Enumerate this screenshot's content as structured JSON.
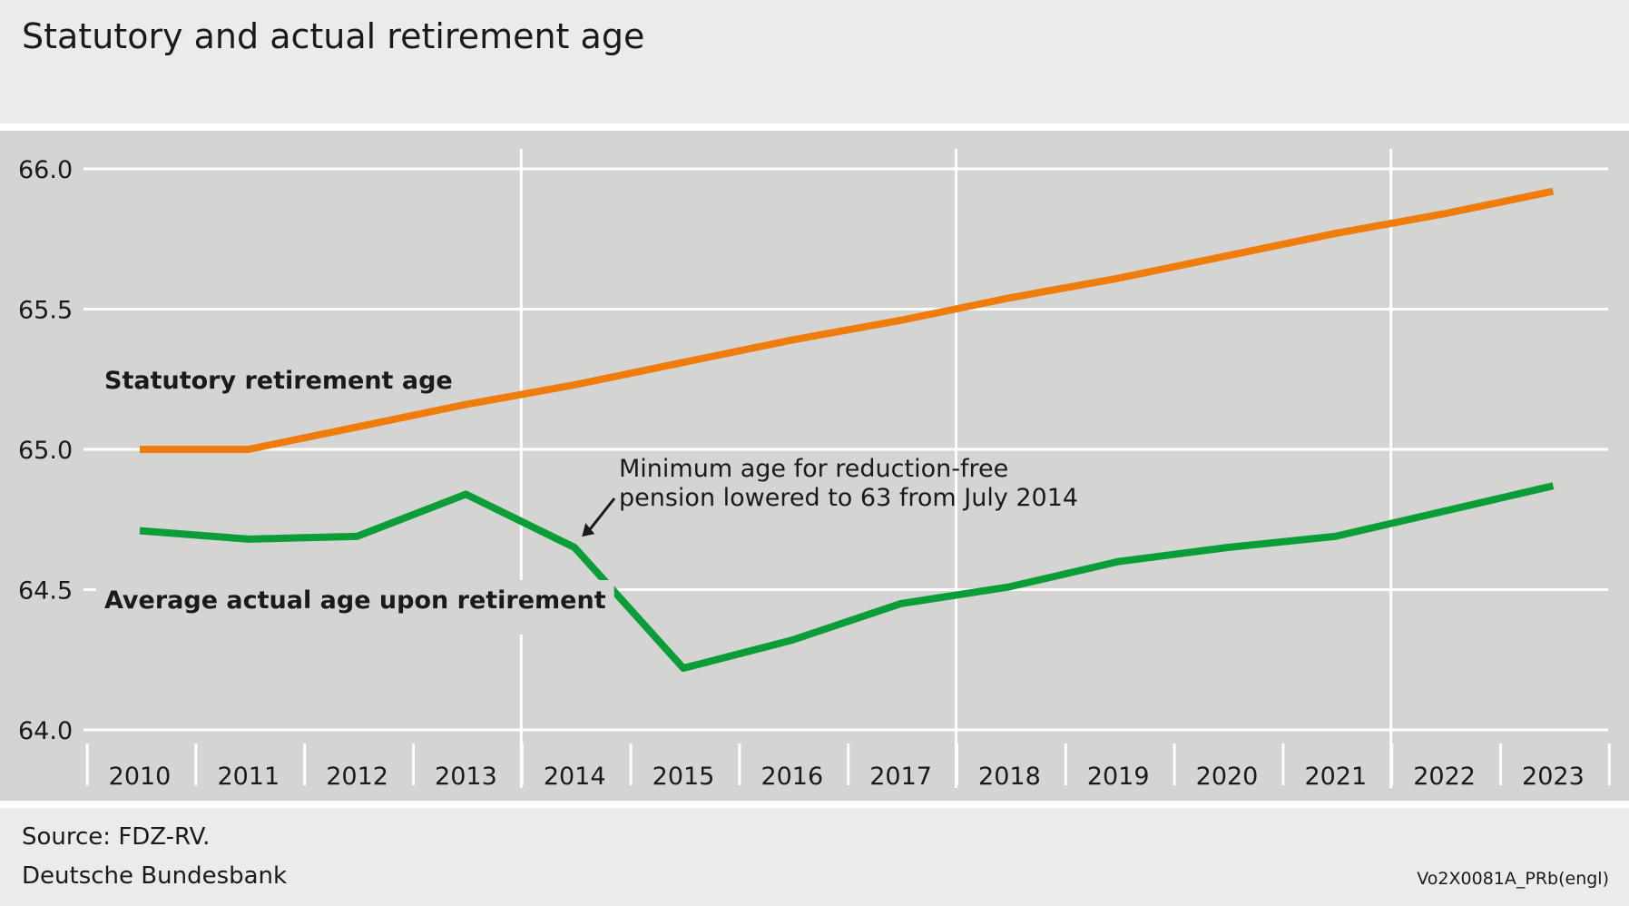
{
  "title": "Statutory and actual retirement age",
  "source": "Source: FDZ-RV.",
  "publisher": "Deutsche Bundesbank",
  "chart_code": "Vo2X0081A_PRb(engl)",
  "chart_data": {
    "type": "line",
    "title": "Statutory and actual retirement age",
    "xlabel": "",
    "ylabel": "",
    "x": [
      "2010",
      "2011",
      "2012",
      "2013",
      "2014",
      "2015",
      "2016",
      "2017",
      "2018",
      "2019",
      "2020",
      "2021",
      "2022",
      "2023"
    ],
    "y_ticks": [
      "64.0",
      "64.5",
      "65.0",
      "65.5",
      "66.0"
    ],
    "ylim": [
      64.0,
      66.0
    ],
    "grid": "horizontal at y ticks; vertical at 2014, 2018, 2022",
    "legend": "inline labels",
    "series": [
      {
        "name": "Statutory retirement age",
        "color": "#f07d0b",
        "values": [
          65.0,
          65.0,
          65.08,
          65.16,
          65.23,
          65.31,
          65.39,
          65.46,
          65.54,
          65.61,
          65.69,
          65.77,
          65.84,
          65.92
        ]
      },
      {
        "name": "Average actual age upon retirement",
        "color": "#0b9d38",
        "values": [
          64.71,
          64.68,
          64.69,
          64.84,
          64.65,
          64.22,
          64.32,
          64.45,
          64.51,
          64.6,
          64.65,
          64.69,
          64.78,
          64.87
        ]
      }
    ],
    "annotation": {
      "line1": "Minimum age for reduction-free",
      "line2": "pension lowered to 63 from July 2014",
      "points_to": "2014"
    }
  }
}
